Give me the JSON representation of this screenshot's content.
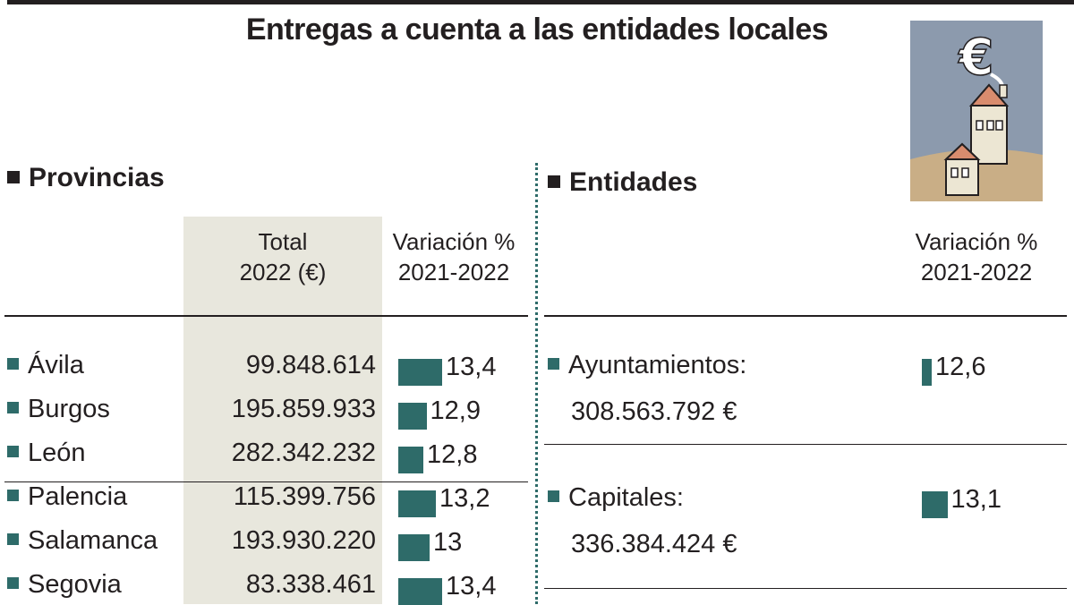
{
  "title": "Entregas a cuenta a las entidades locales",
  "provincias": {
    "heading": "Provincias",
    "col_total_line1": "Total",
    "col_total_line2": "2022 (€)",
    "col_var_line1": "Variación %",
    "col_var_line2": "2021-2022"
  },
  "entidades": {
    "heading": "Entidades",
    "col_var_line1": "Variación %",
    "col_var_line2": "2021-2022",
    "items": [
      {
        "name": "Ayuntamientos:",
        "total": "308.563.792 €",
        "variacion": 12.6,
        "variacion_label": "12,6"
      },
      {
        "name": "Capitales:",
        "total": "336.384.424 €",
        "variacion": 13.1,
        "variacion_label": "13,1"
      }
    ]
  },
  "chart_data": {
    "type": "table",
    "title": "Entregas a cuenta a las entidades locales",
    "columns": [
      "Total 2022 (€)",
      "Variación % 2021-2022"
    ],
    "rows": [
      {
        "name": "Ávila",
        "total": "99.848.614",
        "variacion": 13.4,
        "variacion_label": "13,4"
      },
      {
        "name": "Burgos",
        "total": "195.859.933",
        "variacion": 12.9,
        "variacion_label": "12,9"
      },
      {
        "name": "León",
        "total": "282.342.232",
        "variacion": 12.8,
        "variacion_label": "12,8"
      },
      {
        "name": "Palencia",
        "total": "115.399.756",
        "variacion": 13.2,
        "variacion_label": "13,2"
      },
      {
        "name": "Salamanca",
        "total": "193.930.220",
        "variacion": 13.0,
        "variacion_label": "13"
      },
      {
        "name": "Segovia",
        "total": "83.338.461",
        "variacion": 13.4,
        "variacion_label": "13,4"
      }
    ]
  },
  "colors": {
    "accent": "#2e6b69",
    "shade": "#e8e7dd",
    "ink": "#231f20"
  },
  "icon": "euro-house-illustration"
}
